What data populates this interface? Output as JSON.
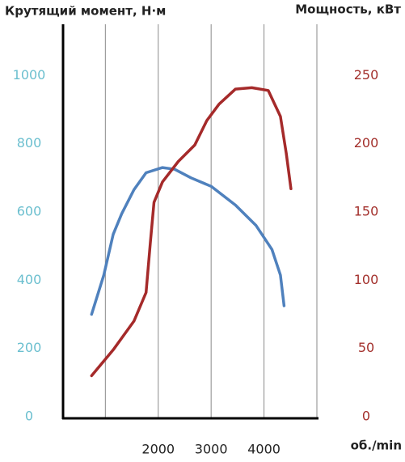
{
  "chart_data": {
    "type": "line",
    "title": "Крутящий момент, Н·м",
    "y2_title": "Мощность, кВт",
    "x_title": "об./min",
    "xlim": [
      200,
      5000
    ],
    "xticks": [
      2000,
      3000,
      4000
    ],
    "xgrid": [
      1000,
      2000,
      3000,
      4000,
      5000
    ],
    "ylim": [
      0,
      1150
    ],
    "yticks": [
      0,
      200,
      400,
      600,
      800,
      1000
    ],
    "ytick_color": "#6bbfcf",
    "y2lim": [
      0,
      287.5
    ],
    "y2ticks": [
      0,
      50,
      100,
      150,
      200,
      250
    ],
    "y2tick_color": "#a3302c",
    "series": [
      {
        "name": "Крутящий момент",
        "color": "#4f81bd",
        "x": [
          740,
          970,
          1150,
          1310,
          1540,
          1770,
          2080,
          2310,
          2620,
          3000,
          3460,
          3850,
          4150,
          4310,
          4380
        ],
        "values": [
          300,
          415,
          535,
          595,
          665,
          715,
          730,
          725,
          700,
          675,
          620,
          560,
          490,
          415,
          325
        ]
      },
      {
        "name": "Мощность",
        "color": "#a52a2a",
        "axis": "y2",
        "x": [
          740,
          1150,
          1540,
          1770,
          1850,
          1920,
          2080,
          2380,
          2690,
          2920,
          3150,
          3460,
          3770,
          4080,
          4310,
          4420,
          4510
        ],
        "values": [
          30,
          49,
          70,
          91,
          127,
          157,
          172,
          187,
          199,
          217,
          229,
          240,
          241,
          239,
          220,
          193,
          167
        ]
      }
    ]
  }
}
